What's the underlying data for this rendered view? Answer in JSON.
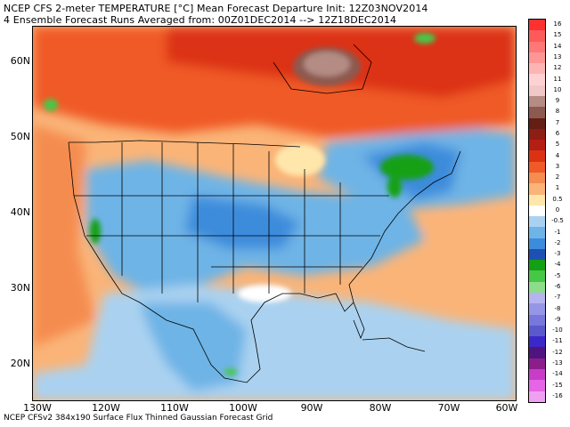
{
  "header": {
    "line1": "NCEP CFS 2-meter TEMPERATURE [°C] Mean Forecast Departure Init: 12Z03NOV2014",
    "line2": "4 Ensemble Forecast Runs Averaged from: 00Z01DEC2014 --> 12Z18DEC2014"
  },
  "footer": "NCEP CFSv2 384x190 Surface Flux Thinned Gaussian Forecast Grid",
  "lat_labels": [
    "60N",
    "50N",
    "40N",
    "30N",
    "20N"
  ],
  "lon_labels": [
    "130W",
    "120W",
    "110W",
    "100W",
    "90W",
    "80W",
    "70W",
    "60W"
  ],
  "colorbar": {
    "labels": [
      "16",
      "15",
      "14",
      "13",
      "12",
      "11",
      "10",
      "9",
      "8",
      "7",
      "6",
      "5",
      "4",
      "3",
      "2",
      "1",
      "0.5",
      "0",
      "-0.5",
      "-1",
      "-2",
      "-3",
      "-4",
      "-5",
      "-6",
      "-7",
      "-8",
      "-9",
      "-10",
      "-11",
      "-12",
      "-13",
      "-14",
      "-15",
      "-16"
    ],
    "colors": [
      "#ff3030",
      "#ff5a5a",
      "#ff7878",
      "#ff9696",
      "#ffb4b4",
      "#ffd2d2",
      "#f0c8c8",
      "#b48c84",
      "#8c5a50",
      "#641e14",
      "#8c1e14",
      "#b41e14",
      "#dc3214",
      "#f05a28",
      "#f58c50",
      "#fab478",
      "#ffe6aa",
      "#ffffff",
      "#aad2f0",
      "#6eb4e6",
      "#3c8cdc",
      "#1e50b4",
      "#14a014",
      "#46c846",
      "#8cdc8c",
      "#b4b4f0",
      "#9696e6",
      "#7878dc",
      "#5a5acd",
      "#3c28c8",
      "#50147f",
      "#8c1e8c",
      "#c83cc8",
      "#e664e6",
      "#f0a0f0"
    ]
  }
}
